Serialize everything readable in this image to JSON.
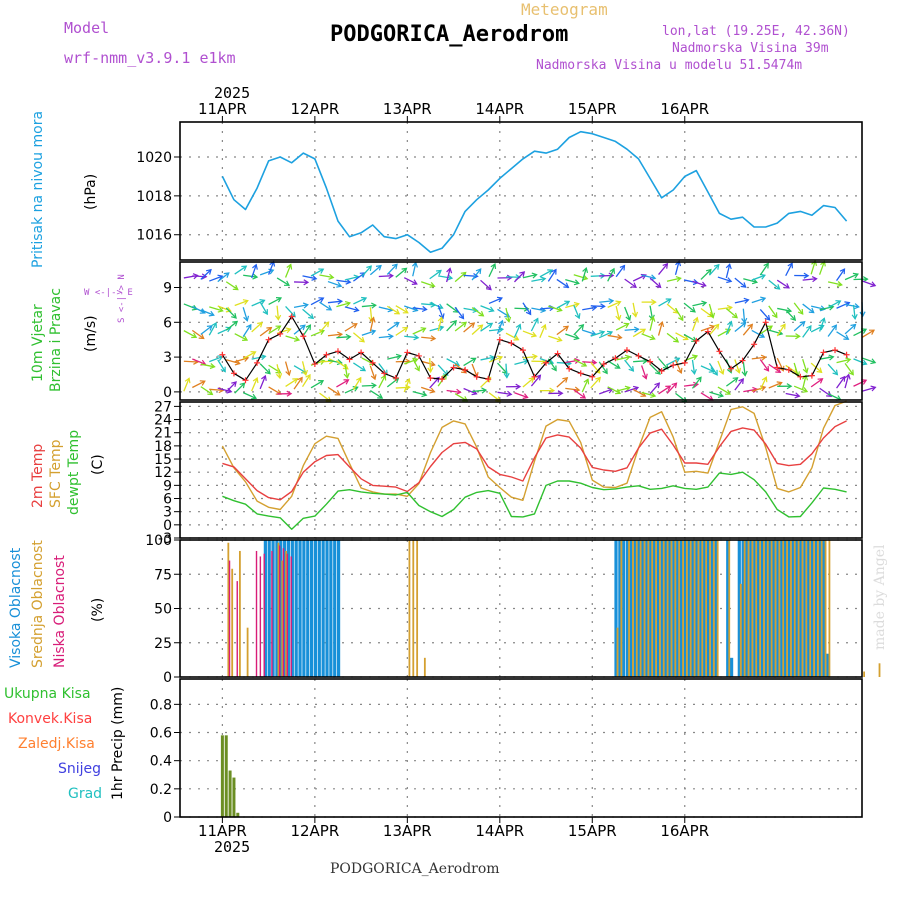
{
  "header": {
    "model_label": "Model",
    "model_name": "wrf-nmm_v3.9.1 e1km",
    "meteogram_label": "Meteogram",
    "station": "PODGORICA_Aerodrom",
    "coords": "lon,lat (19.25E, 42.36N)",
    "elevation": "Nadmorska Visina 39m",
    "model_elevation": "Nadmorska Visina u modelu 51.5474m",
    "bottom_station": "PODGORICA_Aerodrom",
    "credit": "made by Angel"
  },
  "time_axis": {
    "year": "2025",
    "day_labels": [
      "11APR",
      "12APR",
      "13APR",
      "14APR",
      "15APR",
      "16APR"
    ]
  },
  "panels": {
    "pressure": {
      "label": "Pritisak na nivou mora",
      "unit": "(hPa)"
    },
    "wind": {
      "label1": "10m Vjetar",
      "label2": "Brzina i Pravac",
      "unit": "(m/s)",
      "compass": "W <-|-> E",
      "compass_ns": "S <-|-> N"
    },
    "temp": {
      "label1": "2m Temp",
      "label2": "SFC Temp",
      "label3": "dewpt Temp",
      "unit": "(C)"
    },
    "cloud": {
      "label1": "Visoka Oblacnost",
      "label2": "Srednja Oblacnost",
      "label3": "Niska Oblacnost",
      "unit": "(%)"
    },
    "precip": {
      "labels": [
        "Ukupna Kisa",
        "Konvek.Kisa",
        "Zaledj.Kisa",
        "Snijeg",
        "Grad"
      ],
      "axis_label": "1hr Precip (mm)"
    }
  },
  "colors": {
    "pressure": "#1da1e0",
    "t2m": "#e84040",
    "sfc": "#d4a030",
    "dewpt": "#30c030",
    "high_cloud": "#1890d8",
    "mid_cloud": "#d4a030",
    "low_cloud": "#d81c78",
    "total_rain": "#6b8e23",
    "conv_rain": "#ff4040",
    "frz_rain": "#ff8030",
    "snow": "#4040e0",
    "hail": "#20c0c0",
    "model_text": "#b050d0"
  },
  "chart_data": [
    {
      "type": "line",
      "title": "Pritisak na nivou mora",
      "ylabel": "(hPa)",
      "ylim": [
        1014.7,
        1021.8
      ],
      "yticks": [
        1016,
        1018,
        1020
      ],
      "x_hours": [
        0,
        3,
        6,
        9,
        12,
        15,
        18,
        21,
        24,
        27,
        30,
        33,
        36,
        39,
        42,
        45,
        48,
        51,
        54,
        57,
        60,
        63,
        66,
        69,
        72,
        75,
        78,
        81,
        84,
        87,
        90,
        93,
        96,
        99,
        102,
        105,
        108,
        111,
        114,
        117,
        120,
        123,
        126,
        129,
        132,
        135,
        138,
        141,
        144,
        147,
        150,
        153,
        156,
        159,
        162
      ],
      "series": [
        {
          "values": [
            1019.0,
            1017.8,
            1017.3,
            1018.4,
            1019.8,
            1020.0,
            1019.7,
            1020.2,
            1019.9,
            1018.4,
            1016.7,
            1015.9,
            1016.1,
            1016.5,
            1015.9,
            1015.8,
            1016.0,
            1015.6,
            1015.1,
            1015.3,
            1016.0,
            1017.2,
            1017.8,
            1018.3,
            1018.9,
            1019.4,
            1019.9,
            1020.3,
            1020.2,
            1020.4,
            1021.0,
            1021.3,
            1021.2,
            1021.0,
            1020.8,
            1020.4,
            1019.9,
            1018.9,
            1017.9,
            1018.3,
            1019.0,
            1019.3,
            1018.2,
            1017.1,
            1016.8,
            1016.9,
            1016.4,
            1016.4,
            1016.6,
            1017.1,
            1017.2,
            1017.0,
            1017.5,
            1017.4,
            1016.7
          ]
        }
      ]
    },
    {
      "type": "line",
      "title": "10m Vjetar Brzina i Pravac",
      "ylabel": "(m/s)",
      "ylim": [
        -0.7,
        11.2
      ],
      "yticks": [
        0,
        3,
        6,
        9
      ],
      "x_hours": [
        0,
        3,
        6,
        9,
        12,
        15,
        18,
        21,
        24,
        27,
        30,
        33,
        36,
        39,
        42,
        45,
        48,
        51,
        54,
        57,
        60,
        63,
        66,
        69,
        72,
        75,
        78,
        81,
        84,
        87,
        90,
        93,
        96,
        99,
        102,
        105,
        108,
        111,
        114,
        117,
        120,
        123,
        126,
        129,
        132,
        135,
        138,
        141,
        144,
        147,
        150,
        153,
        156,
        159,
        162
      ],
      "series": [
        {
          "values": [
            3.2,
            1.6,
            1.0,
            2.5,
            4.5,
            5.0,
            6.5,
            4.8,
            2.4,
            3.2,
            3.5,
            2.8,
            3.4,
            2.5,
            1.6,
            1.2,
            3.4,
            3.1,
            1.2,
            1.1,
            2.1,
            1.9,
            1.3,
            1.1,
            4.5,
            4.2,
            3.6,
            1.3,
            2.5,
            3.3,
            2.0,
            1.6,
            1.3,
            2.4,
            2.9,
            3.6,
            3.1,
            2.6,
            1.8,
            2.3,
            2.5,
            4.4,
            5.2,
            3.5,
            2.0,
            2.7,
            4.1,
            6.0,
            2.1,
            1.9,
            1.3,
            1.4,
            3.4,
            3.6,
            3.2
          ]
        }
      ]
    },
    {
      "type": "line",
      "title": "2m Temp / SFC Temp / dewpt Temp",
      "ylabel": "(C)",
      "ylim": [
        -3,
        28
      ],
      "yticks": [
        -3,
        0,
        3,
        6,
        9,
        12,
        15,
        18,
        21,
        24,
        27
      ],
      "x_hours": [
        0,
        3,
        6,
        9,
        12,
        15,
        18,
        21,
        24,
        27,
        30,
        33,
        36,
        39,
        42,
        45,
        48,
        51,
        54,
        57,
        60,
        63,
        66,
        69,
        72,
        75,
        78,
        81,
        84,
        87,
        90,
        93,
        96,
        99,
        102,
        105,
        108,
        111,
        114,
        117,
        120,
        123,
        126,
        129,
        132,
        135,
        138,
        141,
        144,
        147,
        150,
        153,
        156,
        159,
        162
      ],
      "series": [
        {
          "values": [
            14.0,
            13.2,
            10.5,
            7.8,
            6.2,
            5.7,
            7.6,
            12.0,
            14.4,
            15.8,
            16.0,
            13.2,
            10.5,
            9.0,
            8.8,
            8.6,
            7.6,
            9.6,
            13.3,
            16.5,
            18.5,
            18.8,
            17.3,
            13.2,
            11.5,
            10.9,
            10.0,
            15.3,
            19.8,
            20.5,
            20.0,
            17.5,
            13.1,
            12.5,
            12.2,
            13.0,
            17.5,
            20.9,
            21.8,
            18.2,
            14.1,
            14.1,
            13.8,
            17.8,
            21.3,
            22.1,
            21.6,
            18.4,
            14.0,
            13.5,
            13.8,
            16.2,
            19.8,
            22.4,
            23.7
          ]
        },
        {
          "values": [
            18.0,
            13.0,
            9.8,
            5.4,
            4.0,
            3.5,
            6.5,
            13.5,
            18.5,
            20.2,
            19.7,
            14.0,
            8.4,
            7.5,
            7.0,
            7.0,
            6.5,
            9.4,
            16.5,
            22.2,
            23.7,
            23.0,
            17.7,
            10.9,
            8.5,
            6.3,
            5.6,
            14.5,
            22.5,
            24.0,
            23.6,
            18.8,
            10.2,
            8.6,
            8.5,
            9.5,
            17.5,
            24.5,
            25.8,
            20.0,
            12.0,
            12.2,
            11.8,
            19.0,
            26.3,
            26.9,
            25.4,
            17.6,
            8.3,
            7.5,
            8.5,
            13.0,
            22.0,
            27.2,
            28.2
          ]
        },
        {
          "values": [
            6.5,
            5.5,
            4.7,
            2.5,
            2.0,
            1.6,
            -1.0,
            1.5,
            2.0,
            4.7,
            7.7,
            8.0,
            7.5,
            7.2,
            7.0,
            6.8,
            7.4,
            4.4,
            3.0,
            1.9,
            3.5,
            6.3,
            7.4,
            7.8,
            7.2,
            1.9,
            1.8,
            2.5,
            9.0,
            10.0,
            10.0,
            9.5,
            8.5,
            8.0,
            8.2,
            8.6,
            8.9,
            8.1,
            8.3,
            8.9,
            8.3,
            8.1,
            8.6,
            11.8,
            11.5,
            12.0,
            10.3,
            7.5,
            3.5,
            1.8,
            1.9,
            5.0,
            8.4,
            8.1,
            7.5
          ]
        }
      ]
    },
    {
      "type": "bar",
      "title": "Visoka / Srednja / Niska Oblacnost",
      "ylabel": "(%)",
      "ylim": [
        0,
        100
      ],
      "yticks": [
        0,
        25,
        50,
        75,
        100
      ],
      "bars": {
        "high": [
          [
            11,
            100
          ],
          [
            12,
            100
          ],
          [
            13,
            100
          ],
          [
            14,
            100
          ],
          [
            15,
            100
          ],
          [
            16,
            100
          ],
          [
            17,
            100
          ],
          [
            18,
            100
          ],
          [
            19,
            100
          ],
          [
            20,
            100
          ],
          [
            21,
            100
          ],
          [
            22,
            100
          ],
          [
            23,
            100
          ],
          [
            24,
            100
          ],
          [
            25,
            100
          ],
          [
            26,
            100
          ],
          [
            27,
            100
          ],
          [
            28,
            100
          ],
          [
            29,
            100
          ],
          [
            30,
            100
          ],
          [
            102,
            100
          ],
          [
            103,
            100
          ],
          [
            104,
            100
          ],
          [
            105,
            100
          ],
          [
            106,
            100
          ],
          [
            107,
            100
          ],
          [
            108,
            100
          ],
          [
            109,
            100
          ],
          [
            110,
            100
          ],
          [
            111,
            100
          ],
          [
            112,
            100
          ],
          [
            113,
            100
          ],
          [
            114,
            100
          ],
          [
            115,
            100
          ],
          [
            116,
            100
          ],
          [
            117,
            100
          ],
          [
            118,
            100
          ],
          [
            119,
            100
          ],
          [
            120,
            100
          ],
          [
            121,
            100
          ],
          [
            122,
            100
          ],
          [
            123,
            100
          ],
          [
            124,
            100
          ],
          [
            125,
            100
          ],
          [
            126,
            100
          ],
          [
            127,
            100
          ],
          [
            128,
            100
          ],
          [
            131,
            100
          ],
          [
            132,
            14
          ],
          [
            134,
            100
          ],
          [
            135,
            100
          ],
          [
            136,
            100
          ],
          [
            137,
            100
          ],
          [
            138,
            100
          ],
          [
            139,
            100
          ],
          [
            140,
            100
          ],
          [
            141,
            100
          ],
          [
            142,
            100
          ],
          [
            143,
            100
          ],
          [
            144,
            100
          ],
          [
            145,
            100
          ],
          [
            146,
            100
          ],
          [
            147,
            100
          ],
          [
            148,
            100
          ],
          [
            149,
            100
          ],
          [
            150,
            100
          ],
          [
            151,
            100
          ],
          [
            152,
            100
          ],
          [
            153,
            100
          ],
          [
            154,
            100
          ],
          [
            155,
            100
          ],
          [
            156,
            100
          ],
          [
            157,
            17
          ]
        ],
        "mid": [
          [
            1,
            98
          ],
          [
            2,
            79
          ],
          [
            4,
            92
          ],
          [
            6,
            36
          ],
          [
            14,
            98
          ],
          [
            15,
            85
          ],
          [
            16,
            92
          ],
          [
            48,
            100
          ],
          [
            49,
            100
          ],
          [
            50,
            100
          ],
          [
            52,
            14
          ],
          [
            102,
            36
          ],
          [
            103,
            100
          ],
          [
            105,
            100
          ],
          [
            106,
            100
          ],
          [
            107,
            100
          ],
          [
            108,
            100
          ],
          [
            109,
            100
          ],
          [
            110,
            100
          ],
          [
            111,
            100
          ],
          [
            112,
            100
          ],
          [
            113,
            100
          ],
          [
            114,
            100
          ],
          [
            115,
            100
          ],
          [
            116,
            100
          ],
          [
            117,
            100
          ],
          [
            118,
            100
          ],
          [
            119,
            100
          ],
          [
            120,
            100
          ],
          [
            121,
            100
          ],
          [
            122,
            100
          ],
          [
            123,
            100
          ],
          [
            124,
            100
          ],
          [
            125,
            100
          ],
          [
            126,
            100
          ],
          [
            127,
            100
          ],
          [
            128,
            100
          ],
          [
            131,
            100
          ],
          [
            134,
            68
          ],
          [
            135,
            100
          ],
          [
            136,
            100
          ],
          [
            137,
            100
          ],
          [
            138,
            100
          ],
          [
            139,
            100
          ],
          [
            140,
            100
          ],
          [
            141,
            100
          ],
          [
            142,
            100
          ],
          [
            143,
            100
          ],
          [
            144,
            100
          ],
          [
            145,
            100
          ],
          [
            146,
            100
          ],
          [
            147,
            100
          ],
          [
            148,
            100
          ],
          [
            149,
            100
          ],
          [
            150,
            100
          ],
          [
            151,
            100
          ],
          [
            152,
            100
          ],
          [
            153,
            100
          ],
          [
            154,
            100
          ],
          [
            155,
            100
          ],
          [
            156,
            100
          ],
          [
            157,
            100
          ],
          [
            166,
            4
          ],
          [
            170,
            10
          ]
        ],
        "low": [
          [
            1,
            85
          ],
          [
            3,
            70
          ],
          [
            8,
            92
          ],
          [
            9,
            88
          ],
          [
            10,
            90
          ],
          [
            12,
            92
          ],
          [
            14,
            96
          ],
          [
            15,
            94
          ],
          [
            16,
            90
          ],
          [
            17,
            88
          ]
        ]
      }
    },
    {
      "type": "bar",
      "title": "1hr Precip",
      "ylabel": "1hr Precip (mm)",
      "ylim": [
        0,
        0.98
      ],
      "yticks": [
        0,
        0.2,
        0.4,
        0.6,
        0.8
      ],
      "bars": {
        "total": [
          [
            0,
            0.58
          ],
          [
            1,
            0.58
          ],
          [
            2,
            0.33
          ],
          [
            3,
            0.28
          ],
          [
            4,
            0.03
          ]
        ]
      }
    }
  ]
}
